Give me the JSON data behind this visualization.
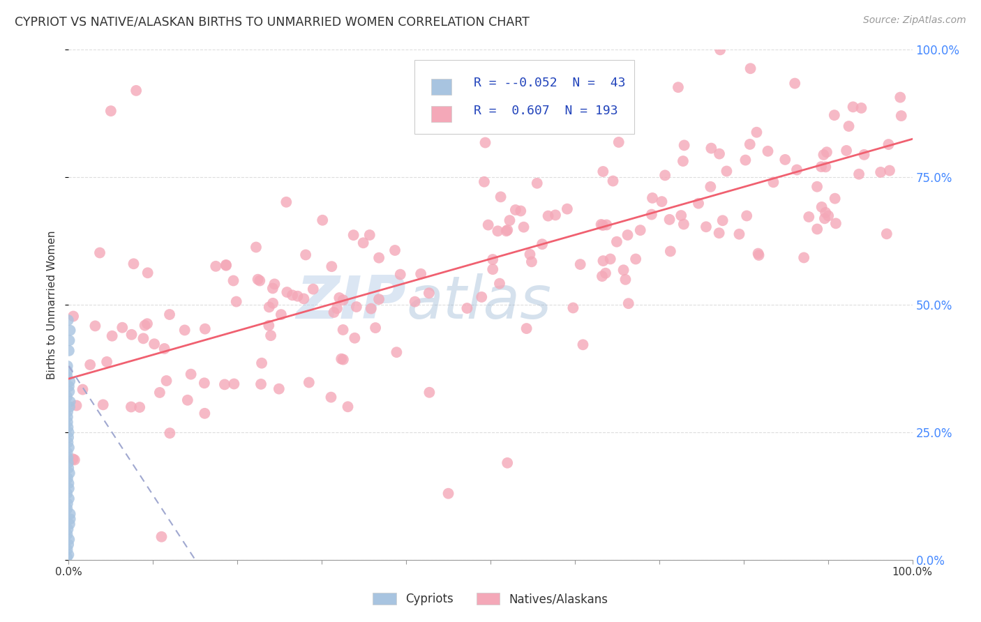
{
  "title": "CYPRIOT VS NATIVE/ALASKAN BIRTHS TO UNMARRIED WOMEN CORRELATION CHART",
  "source": "Source: ZipAtlas.com",
  "ylabel": "Births to Unmarried Women",
  "xlim": [
    0.0,
    1.0
  ],
  "ylim": [
    0.0,
    1.0
  ],
  "ytick_positions": [
    0.0,
    0.25,
    0.5,
    0.75,
    1.0
  ],
  "ytick_labels_right": [
    "0.0%",
    "25.0%",
    "50.0%",
    "75.0%",
    "100.0%"
  ],
  "legend_R_cypriot": "-0.052",
  "legend_N_cypriot": "43",
  "legend_R_native": "0.607",
  "legend_N_native": "193",
  "cypriot_color": "#a8c4e0",
  "native_color": "#f4a8b8",
  "trend_cypriot_color": "#a0a8d0",
  "trend_native_color": "#f06070",
  "background_color": "#ffffff",
  "grid_color": "#dddddd",
  "title_color": "#333333",
  "right_tick_color": "#4488ff",
  "legend_text_color": "#2244bb",
  "watermark_color": "#c8ddf0",
  "figsize": [
    14.06,
    8.92
  ],
  "dpi": 100
}
